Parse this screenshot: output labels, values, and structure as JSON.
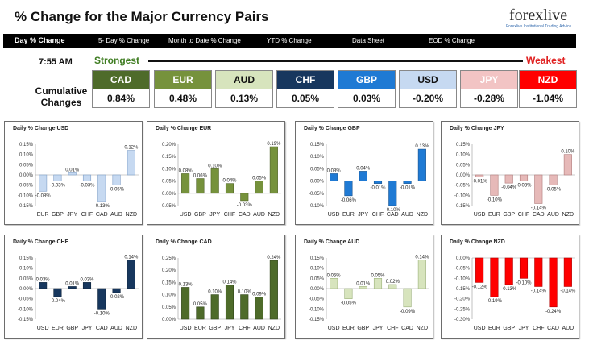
{
  "header": {
    "title": "% Change for the Major Currency Pairs",
    "logo_text": "forexlive",
    "logo_tagline": "Forexlive Institutional Trading Advice"
  },
  "nav": {
    "tabs": [
      "Day % Change",
      "5- Day % Change",
      "Month to Date % Change",
      "YTD % Change",
      "Data Sheet",
      "EOD % Change"
    ]
  },
  "summary": {
    "time": "7:55 AM",
    "strongest_label": "Strongest",
    "weakest_label": "Weakest",
    "cumulative_label": "Cumulative Changes",
    "currencies": [
      {
        "code": "CAD",
        "value": "0.84%",
        "color": "#4e6b2a",
        "text_color": "#ffffff"
      },
      {
        "code": "EUR",
        "value": "0.48%",
        "color": "#76923c",
        "text_color": "#ffffff"
      },
      {
        "code": "AUD",
        "value": "0.13%",
        "color": "#d7e4bd",
        "text_color": "#111111"
      },
      {
        "code": "CHF",
        "value": "0.05%",
        "color": "#17375e",
        "text_color": "#ffffff"
      },
      {
        "code": "GBP",
        "value": "0.03%",
        "color": "#1f7ad4",
        "text_color": "#ffffff"
      },
      {
        "code": "USD",
        "value": "-0.20%",
        "color": "#c6d9f1",
        "text_color": "#111111"
      },
      {
        "code": "JPY",
        "value": "-0.28%",
        "color": "#f2c4c4",
        "text_color": "#ffffff"
      },
      {
        "code": "NZD",
        "value": "-1.04%",
        "color": "#ff0000",
        "text_color": "#ffffff"
      }
    ]
  },
  "chart_data": [
    {
      "type": "bar",
      "title": "Daily % Change USD",
      "categories": [
        "EUR",
        "GBP",
        "JPY",
        "CHF",
        "CAD",
        "AUD",
        "NZD"
      ],
      "values": [
        -0.08,
        -0.03,
        0.01,
        -0.03,
        -0.13,
        -0.05,
        0.12
      ],
      "labels": [
        "-0.08%",
        "-0.03%",
        "0.01%",
        "-0.03%",
        "-0.13%",
        "-0.05%",
        "0.12%"
      ],
      "ylim": [
        -0.15,
        0.15
      ],
      "yticks": [
        "0.15%",
        "0.10%",
        "0.05%",
        "0.00%",
        "-0.05%",
        "-0.10%",
        "-0.15%"
      ],
      "color": "#c6d9f1",
      "edge": "#7f9fc8"
    },
    {
      "type": "bar",
      "title": "Daily % Change EUR",
      "categories": [
        "USD",
        "GBP",
        "JPY",
        "CHF",
        "CAD",
        "AUD",
        "NZD"
      ],
      "values": [
        0.08,
        0.06,
        0.1,
        0.04,
        -0.03,
        0.05,
        0.19
      ],
      "labels": [
        "0.08%",
        "0.06%",
        "0.10%",
        "0.04%",
        "-0.03%",
        "0.05%",
        "0.19%"
      ],
      "ylim": [
        -0.05,
        0.2
      ],
      "yticks": [
        "0.20%",
        "0.15%",
        "0.10%",
        "0.05%",
        "0.00%",
        "-0.05%"
      ],
      "color": "#76923c",
      "edge": "#4f6228"
    },
    {
      "type": "bar",
      "title": "Daily % Change GBP",
      "categories": [
        "USD",
        "EUR",
        "JPY",
        "CHF",
        "CAD",
        "AUD",
        "NZD"
      ],
      "values": [
        0.03,
        -0.06,
        0.04,
        -0.01,
        -0.1,
        -0.01,
        0.13
      ],
      "labels": [
        "0.03%",
        "-0.06%",
        "0.04%",
        "-0.01%",
        "-0.10%",
        "-0.01%",
        "0.13%"
      ],
      "ylim": [
        -0.1,
        0.15
      ],
      "yticks": [
        "0.15%",
        "0.10%",
        "0.05%",
        "0.00%",
        "-0.05%",
        "-0.10%"
      ],
      "color": "#1f7ad4",
      "edge": "#17528f"
    },
    {
      "type": "bar",
      "title": "Daily % Change JPY",
      "categories": [
        "USD",
        "EUR",
        "GBP",
        "CHF",
        "CAD",
        "AUD",
        "NZD"
      ],
      "values": [
        -0.01,
        -0.1,
        -0.04,
        -0.03,
        -0.14,
        -0.05,
        0.1
      ],
      "labels": [
        "-0.01%",
        "-0.10%",
        "-0.04%",
        "-0.03%",
        "-0.14%",
        "-0.05%",
        "0.10%"
      ],
      "ylim": [
        -0.15,
        0.15
      ],
      "yticks": [
        "0.15%",
        "0.10%",
        "0.05%",
        "0.00%",
        "-0.05%",
        "-0.10%",
        "-0.15%"
      ],
      "color": "#e6b9b8",
      "edge": "#b07b7a"
    },
    {
      "type": "bar",
      "title": "Daily % Change CHF",
      "categories": [
        "USD",
        "EUR",
        "GBP",
        "JPY",
        "CAD",
        "AUD",
        "NZD"
      ],
      "values": [
        0.03,
        -0.04,
        0.01,
        0.03,
        -0.1,
        -0.02,
        0.14
      ],
      "labels": [
        "0.03%",
        "-0.04%",
        "0.01%",
        "0.03%",
        "-0.10%",
        "-0.02%",
        "0.14%"
      ],
      "ylim": [
        -0.15,
        0.15
      ],
      "yticks": [
        "0.15%",
        "0.10%",
        "0.05%",
        "0.00%",
        "-0.05%",
        "-0.10%",
        "-0.15%"
      ],
      "color": "#17375e",
      "edge": "#0d2238"
    },
    {
      "type": "bar",
      "title": "Daily % Change CAD",
      "categories": [
        "USD",
        "EUR",
        "GBP",
        "JPY",
        "CHF",
        "AUD",
        "NZD"
      ],
      "values": [
        0.13,
        0.05,
        0.1,
        0.14,
        0.1,
        0.09,
        0.24
      ],
      "labels": [
        "0.13%",
        "0.05%",
        "0.10%",
        "0.14%",
        "0.10%",
        "0.09%",
        "0.24%"
      ],
      "ylim": [
        0,
        0.25
      ],
      "yticks": [
        "0.25%",
        "0.20%",
        "0.15%",
        "0.10%",
        "0.05%",
        "0.00%"
      ],
      "color": "#4e6b2a",
      "edge": "#2f4318"
    },
    {
      "type": "bar",
      "title": "Daily % Change AUD",
      "categories": [
        "USD",
        "EUR",
        "GBP",
        "JPY",
        "CHF",
        "CAD",
        "NZD"
      ],
      "values": [
        0.05,
        -0.05,
        0.01,
        0.05,
        0.02,
        -0.09,
        0.14
      ],
      "labels": [
        "0.05%",
        "-0.05%",
        "0.01%",
        "0.05%",
        "0.02%",
        "-0.09%",
        "0.14%"
      ],
      "ylim": [
        -0.15,
        0.15
      ],
      "yticks": [
        "0.15%",
        "0.10%",
        "0.05%",
        "0.00%",
        "-0.05%",
        "-0.10%",
        "-0.15%"
      ],
      "color": "#d7e4bd",
      "edge": "#9bb07a"
    },
    {
      "type": "bar",
      "title": "Daily % Change NZD",
      "categories": [
        "USD",
        "EUR",
        "GBP",
        "JPY",
        "CHF",
        "CAD",
        "AUD"
      ],
      "values": [
        -0.12,
        -0.19,
        -0.13,
        -0.1,
        -0.14,
        -0.24,
        -0.14
      ],
      "labels": [
        "-0.12%",
        "-0.19%",
        "-0.13%",
        "-0.10%",
        "-0.14%",
        "-0.24%",
        "-0.14%"
      ],
      "ylim": [
        -0.3,
        0
      ],
      "yticks": [
        "0.00%",
        "-0.05%",
        "-0.10%",
        "-0.15%",
        "-0.20%",
        "-0.25%",
        "-0.30%"
      ],
      "color": "#ff0000",
      "edge": "#b00000"
    }
  ]
}
